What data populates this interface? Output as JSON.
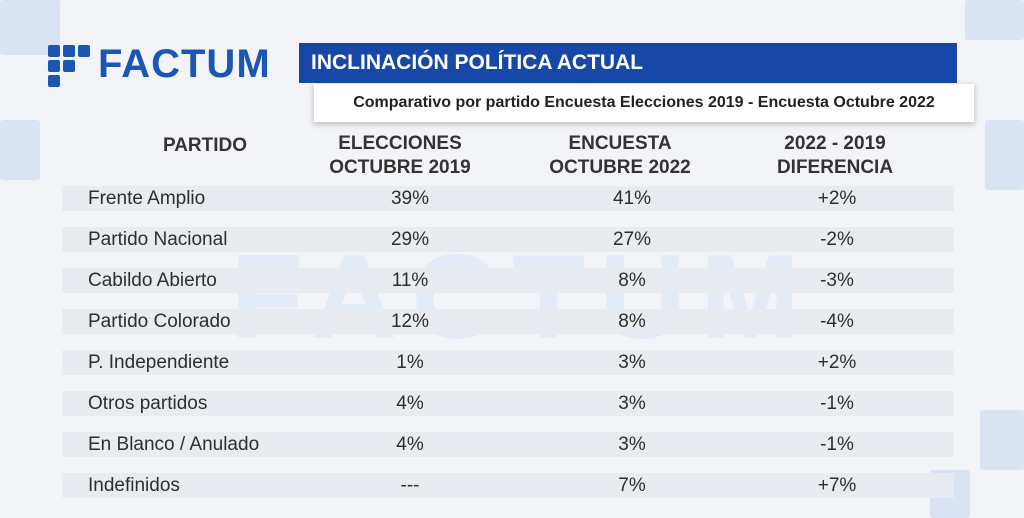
{
  "brand": {
    "logo_text": "FACTUM",
    "watermark_text": "FACTUM",
    "accent_color": "#1b56b5"
  },
  "header": {
    "title": "INCLINACIÓN POLÍTICA ACTUAL",
    "subtitle": "Comparativo por partido Encuesta Elecciones 2019 - Encuesta Octubre 2022"
  },
  "chart_data": {
    "type": "table",
    "columns": [
      {
        "line1": "PARTIDO",
        "line2": ""
      },
      {
        "line1": "ELECCIONES",
        "line2": "OCTUBRE 2019"
      },
      {
        "line1": "ENCUESTA",
        "line2": "OCTUBRE 2022"
      },
      {
        "line1": "2022 - 2019",
        "line2": "DIFERENCIA"
      }
    ],
    "rows": [
      {
        "partido": "Frente Amplio",
        "elecciones_2019": "39%",
        "encuesta_2022": "41%",
        "diferencia": "+2%"
      },
      {
        "partido": "Partido Nacional",
        "elecciones_2019": "29%",
        "encuesta_2022": "27%",
        "diferencia": "-2%"
      },
      {
        "partido": "Cabildo Abierto",
        "elecciones_2019": "11%",
        "encuesta_2022": "8%",
        "diferencia": "-3%"
      },
      {
        "partido": "Partido Colorado",
        "elecciones_2019": "12%",
        "encuesta_2022": "8%",
        "diferencia": "-4%"
      },
      {
        "partido": "P. Independiente",
        "elecciones_2019": "1%",
        "encuesta_2022": "3%",
        "diferencia": "+2%"
      },
      {
        "partido": "Otros partidos",
        "elecciones_2019": "4%",
        "encuesta_2022": "3%",
        "diferencia": "-1%"
      },
      {
        "partido": "En Blanco / Anulado",
        "elecciones_2019": "4%",
        "encuesta_2022": "3%",
        "diferencia": "-1%"
      },
      {
        "partido": "Indefinidos",
        "elecciones_2019": "---",
        "encuesta_2022": "7%",
        "diferencia": "+7%"
      }
    ]
  }
}
